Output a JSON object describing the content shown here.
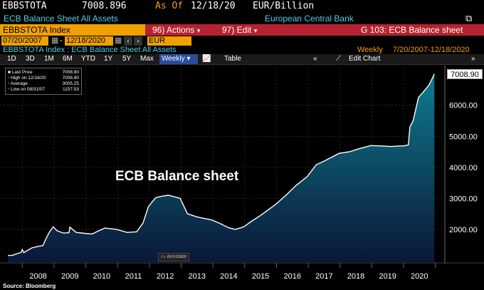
{
  "header": {
    "ticker": "EBBSTOTA",
    "last_value": "7008.896",
    "as_of_label": "As Of",
    "as_of_date": "12/18/20",
    "unit": "EUR/Billion",
    "security_name": "ECB Balance Sheet All Assets",
    "source_name": "European Central Bank"
  },
  "command_bar": {
    "security": "EBBSTOTA Index",
    "actions_label": "96) Actions",
    "edit_label": "97) Edit",
    "function": "G 103: ECB Balance sheet"
  },
  "date_range": {
    "start": "07/20/2007",
    "end": "12/18/2020",
    "currency": "EUR"
  },
  "subtitle": {
    "left": "EBBSTOTA Index : ECB Balance Sheet All Assets",
    "periodicity": "Weekly",
    "span": "7/20/2007-12/18/2020"
  },
  "toolbar": {
    "periods": [
      "1D",
      "3D",
      "1M",
      "6M",
      "YTD",
      "1Y",
      "5Y",
      "Max"
    ],
    "frequency": "Weekly",
    "table_label": "Table",
    "edit_chart_label": "Edit Chart"
  },
  "legend": {
    "last_price_label": "Last Price",
    "last_price_value": "7008.90",
    "high_label": "High on 12/18/20",
    "high_value": "7008.90",
    "average_label": "Average",
    "average_value": "3005.25",
    "low_label": "Low on 08/31/07",
    "low_value": "1157.53"
  },
  "annotate_label": "Annotate",
  "source_text": "Source: Bloomberg",
  "colors": {
    "background": "#000000",
    "header_red": "#b4232f",
    "amber": "#f0a000",
    "cyan_text": "#4fd1e6",
    "line": "#ffffff",
    "area_top": "#0e7488",
    "area_bottom": "#0a1a3a"
  },
  "chart_data": {
    "type": "area",
    "title": "ECB Balance sheet",
    "x_ticks": [
      "2008",
      "2009",
      "2010",
      "2011",
      "2012",
      "2013",
      "2014",
      "2015",
      "2016",
      "2017",
      "2018",
      "2019",
      "2020"
    ],
    "y_ticks": [
      2000,
      3000,
      4000,
      5000,
      6000
    ],
    "y_tick_labels": [
      "2000.00",
      "3000.00",
      "4000.00",
      "5000.00",
      "6000.00"
    ],
    "ylim": [
      940,
      7280
    ],
    "xlim": [
      2007.3,
      2021.3
    ],
    "last_value_label": "7008.90",
    "series": [
      {
        "points": [
          [
            2007.55,
            1160
          ],
          [
            2007.67,
            1157
          ],
          [
            2007.8,
            1200
          ],
          [
            2007.97,
            1260
          ],
          [
            2008.0,
            1350
          ],
          [
            2008.05,
            1250
          ],
          [
            2008.3,
            1400
          ],
          [
            2008.5,
            1450
          ],
          [
            2008.65,
            1480
          ],
          [
            2008.75,
            1700
          ],
          [
            2008.85,
            1900
          ],
          [
            2008.97,
            2080
          ],
          [
            2009.1,
            1950
          ],
          [
            2009.3,
            1880
          ],
          [
            2009.47,
            1890
          ],
          [
            2009.5,
            2070
          ],
          [
            2009.7,
            1900
          ],
          [
            2009.97,
            1870
          ],
          [
            2010.2,
            1850
          ],
          [
            2010.4,
            1950
          ],
          [
            2010.6,
            2040
          ],
          [
            2010.97,
            2000
          ],
          [
            2011.3,
            1900
          ],
          [
            2011.6,
            1920
          ],
          [
            2011.8,
            2200
          ],
          [
            2011.97,
            2730
          ],
          [
            2012.1,
            2900
          ],
          [
            2012.2,
            3020
          ],
          [
            2012.4,
            3070
          ],
          [
            2012.6,
            3100
          ],
          [
            2012.97,
            3000
          ],
          [
            2013.2,
            2500
          ],
          [
            2013.5,
            2400
          ],
          [
            2013.97,
            2300
          ],
          [
            2014.2,
            2200
          ],
          [
            2014.5,
            2050
          ],
          [
            2014.7,
            2000
          ],
          [
            2014.85,
            2040
          ],
          [
            2014.97,
            2080
          ],
          [
            2015.2,
            2250
          ],
          [
            2015.5,
            2450
          ],
          [
            2015.97,
            2800
          ],
          [
            2016.3,
            3100
          ],
          [
            2016.6,
            3400
          ],
          [
            2016.97,
            3700
          ],
          [
            2017.25,
            4080
          ],
          [
            2017.5,
            4200
          ],
          [
            2017.97,
            4450
          ],
          [
            2018.3,
            4500
          ],
          [
            2018.6,
            4600
          ],
          [
            2018.97,
            4700
          ],
          [
            2019.3,
            4690
          ],
          [
            2019.6,
            4670
          ],
          [
            2019.9,
            4690
          ],
          [
            2020.0,
            4690
          ],
          [
            2020.15,
            4720
          ],
          [
            2020.2,
            5300
          ],
          [
            2020.3,
            5500
          ],
          [
            2020.47,
            6250
          ],
          [
            2020.6,
            6400
          ],
          [
            2020.8,
            6650
          ],
          [
            2020.97,
            7008.9
          ]
        ]
      }
    ]
  }
}
